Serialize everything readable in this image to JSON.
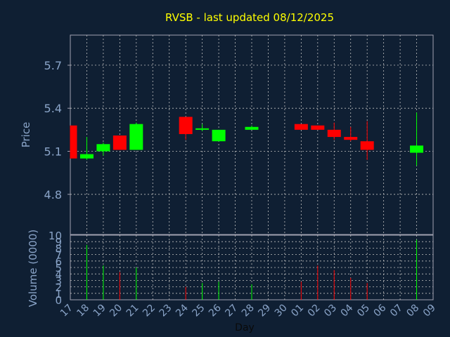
{
  "chart_data": {
    "type": "candlestick",
    "title": "RVSB - last updated 08/12/2025",
    "xlabel": "Day",
    "ylabel": "Price",
    "volume_label": "Volume (0000)",
    "price_ylim": [
      4.52,
      5.91
    ],
    "price_ticks": [
      "5.7",
      "5.4",
      "5.1",
      "4.8"
    ],
    "price_tick_values": [
      5.7,
      5.4,
      5.1,
      4.8
    ],
    "volume_ylim": [
      0,
      10
    ],
    "volume_ticks": [
      "10",
      "9",
      "8",
      "7",
      "6",
      "5",
      "4",
      "3",
      "2",
      "1",
      "0"
    ],
    "volume_tick_values": [
      10,
      9,
      8,
      7,
      6,
      5,
      4,
      3,
      2,
      1,
      0
    ],
    "x_ticks": [
      "17",
      "18",
      "19",
      "20",
      "21",
      "22",
      "23",
      "24",
      "25",
      "26",
      "27",
      "28",
      "29",
      "30",
      "01",
      "02",
      "03",
      "04",
      "05",
      "06",
      "07",
      "08",
      "09"
    ],
    "grid": true,
    "colors": {
      "background": "#0f1f33",
      "panel": "#0f1f33",
      "axis": "#a0a0b0",
      "grid": "#c0c0c0",
      "up": "#00ff00",
      "down": "#ff0000",
      "title": "#ffff00",
      "label": "#8aa4c8"
    },
    "candles": [
      {
        "day": "17",
        "open": 5.28,
        "high": 5.28,
        "low": 5.05,
        "close": 5.05,
        "volume": 0
      },
      {
        "day": "18",
        "open": 5.05,
        "high": 5.2,
        "low": 5.04,
        "close": 5.08,
        "volume": 8.5
      },
      {
        "day": "19",
        "open": 5.1,
        "high": 5.16,
        "low": 5.07,
        "close": 5.15,
        "volume": 5.3
      },
      {
        "day": "20",
        "open": 5.21,
        "high": 5.21,
        "low": 5.11,
        "close": 5.11,
        "volume": 4.3
      },
      {
        "day": "21",
        "open": 5.11,
        "high": 5.3,
        "low": 5.11,
        "close": 5.29,
        "volume": 5.0
      },
      {
        "day": "24",
        "open": 5.34,
        "high": 5.34,
        "low": 5.18,
        "close": 5.22,
        "volume": 2.0
      },
      {
        "day": "25",
        "open": 5.25,
        "high": 5.29,
        "low": 5.24,
        "close": 5.26,
        "volume": 2.6
      },
      {
        "day": "26",
        "open": 5.17,
        "high": 5.25,
        "low": 5.17,
        "close": 5.25,
        "volume": 2.8
      },
      {
        "day": "28",
        "open": 5.25,
        "high": 5.28,
        "low": 5.25,
        "close": 5.27,
        "volume": 2.4
      },
      {
        "day": "01",
        "open": 5.29,
        "high": 5.29,
        "low": 5.25,
        "close": 5.25,
        "volume": 2.8
      },
      {
        "day": "02",
        "open": 5.28,
        "high": 5.28,
        "low": 5.25,
        "close": 5.25,
        "volume": 5.3
      },
      {
        "day": "03",
        "open": 5.25,
        "high": 5.3,
        "low": 5.18,
        "close": 5.2,
        "volume": 4.6
      },
      {
        "day": "04",
        "open": 5.2,
        "high": 5.27,
        "low": 5.17,
        "close": 5.18,
        "volume": 3.4
      },
      {
        "day": "05",
        "open": 5.17,
        "high": 5.31,
        "low": 5.04,
        "close": 5.11,
        "volume": 2.6
      },
      {
        "day": "08",
        "open": 5.09,
        "high": 5.37,
        "low": 5.0,
        "close": 5.14,
        "volume": 9.3
      }
    ]
  }
}
